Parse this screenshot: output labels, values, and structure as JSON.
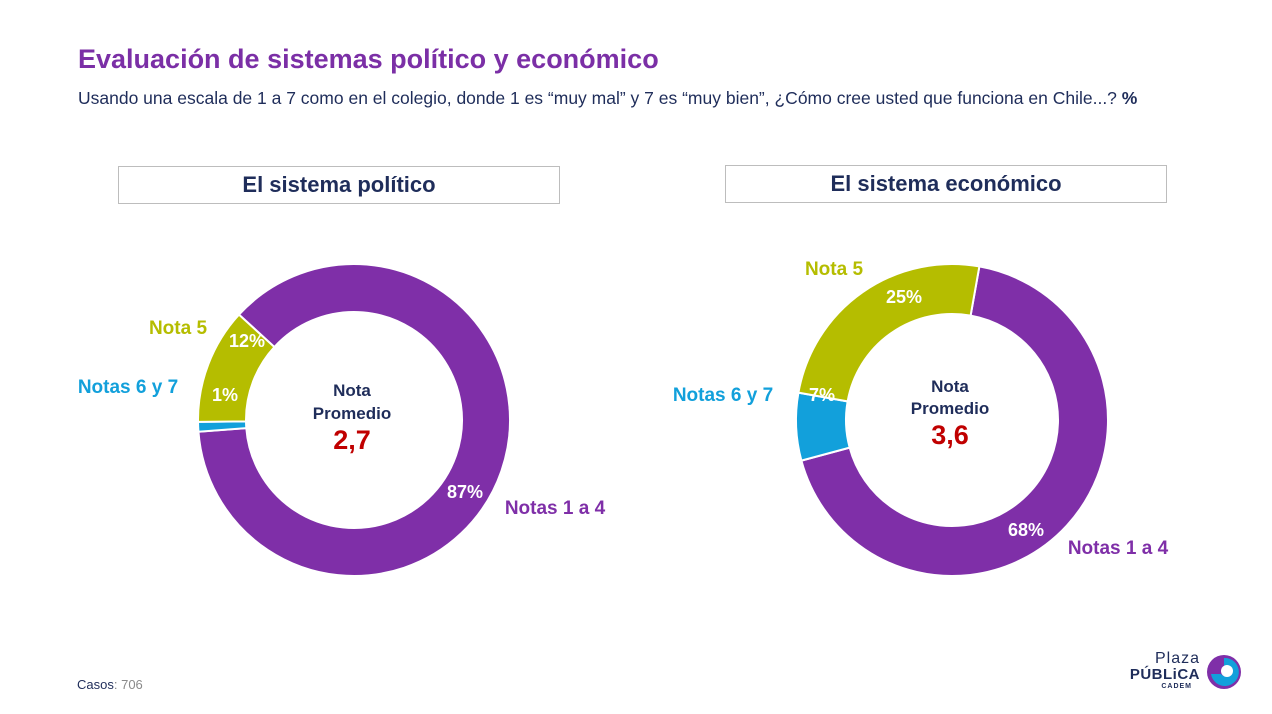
{
  "header": {
    "title": "Evaluación de sistemas político y económico",
    "subtitle": "Usando una escala de 1 a 7 como en el colegio, donde 1 es “muy mal” y 7 es “muy bien”, ¿Cómo cree usted que funciona en Chile...?",
    "subtitle_unit": "%"
  },
  "colors": {
    "purple": "#7F2FA8",
    "lime": "#B5BD00",
    "blue": "#12A0DB",
    "navy": "#1F2D5A",
    "red": "#C00000"
  },
  "chart_data": [
    {
      "type": "pie",
      "title": "El sistema político",
      "center_label": "Nota Promedio",
      "center_value": "2,7",
      "slices": [
        {
          "label": "Notas 1 a 4",
          "value": 87,
          "value_label": "87%",
          "color": "#7F2FA8"
        },
        {
          "label": "Notas 6 y 7",
          "value": 1,
          "value_label": "1%",
          "color": "#12A0DB"
        },
        {
          "label": "Nota 5",
          "value": 12,
          "value_label": "12%",
          "color": "#B5BD00"
        }
      ]
    },
    {
      "type": "pie",
      "title": "El sistema económico",
      "center_label": "Nota Promedio",
      "center_value": "3,6",
      "slices": [
        {
          "label": "Notas 1 a 4",
          "value": 68,
          "value_label": "68%",
          "color": "#7F2FA8"
        },
        {
          "label": "Notas 6 y 7",
          "value": 7,
          "value_label": "7%",
          "color": "#12A0DB"
        },
        {
          "label": "Nota 5",
          "value": 25,
          "value_label": "25%",
          "color": "#B5BD00"
        }
      ]
    }
  ],
  "footer": {
    "label": "Casos",
    "value": ": 706"
  },
  "logo": {
    "line1": "Plaza",
    "line2": "PÚBLiCA",
    "line3": "CADEM"
  }
}
